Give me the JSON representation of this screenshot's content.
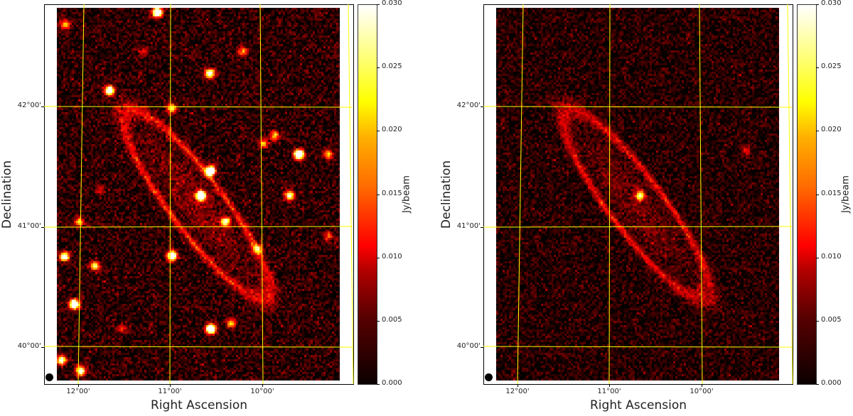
{
  "chart_data": {
    "type": "heatmap",
    "colormap": "hot",
    "panels": [
      {
        "name": "left",
        "xlabel": "Right Ascension",
        "ylabel": "Declination",
        "xticks": [
          "12°00'",
          "11°00'",
          "10°00'"
        ],
        "yticks": [
          "42°00'",
          "41°00'",
          "40°00'"
        ],
        "colorbar": {
          "label": "Jy/beam",
          "range": [
            0.0,
            0.03
          ],
          "ticks": [
            "0.000",
            "0.005",
            "0.010",
            "0.015",
            "0.020",
            "0.025",
            "0.030"
          ]
        },
        "grid_color": "#ffff00",
        "point_sources": "many"
      },
      {
        "name": "right",
        "xlabel": "Right Ascension",
        "ylabel": "Declination",
        "xticks": [
          "12°00'",
          "11°00'",
          "10°00'"
        ],
        "yticks": [
          "42°00'",
          "41°00'",
          "40°00'"
        ],
        "colorbar": {
          "label": "Jy/beam",
          "range": [
            0.0,
            0.03
          ],
          "ticks": [
            "0.000",
            "0.005",
            "0.010",
            "0.015",
            "0.020",
            "0.025",
            "0.030"
          ]
        },
        "grid_color": "#ffff00",
        "point_sources": "subtracted"
      }
    ]
  }
}
